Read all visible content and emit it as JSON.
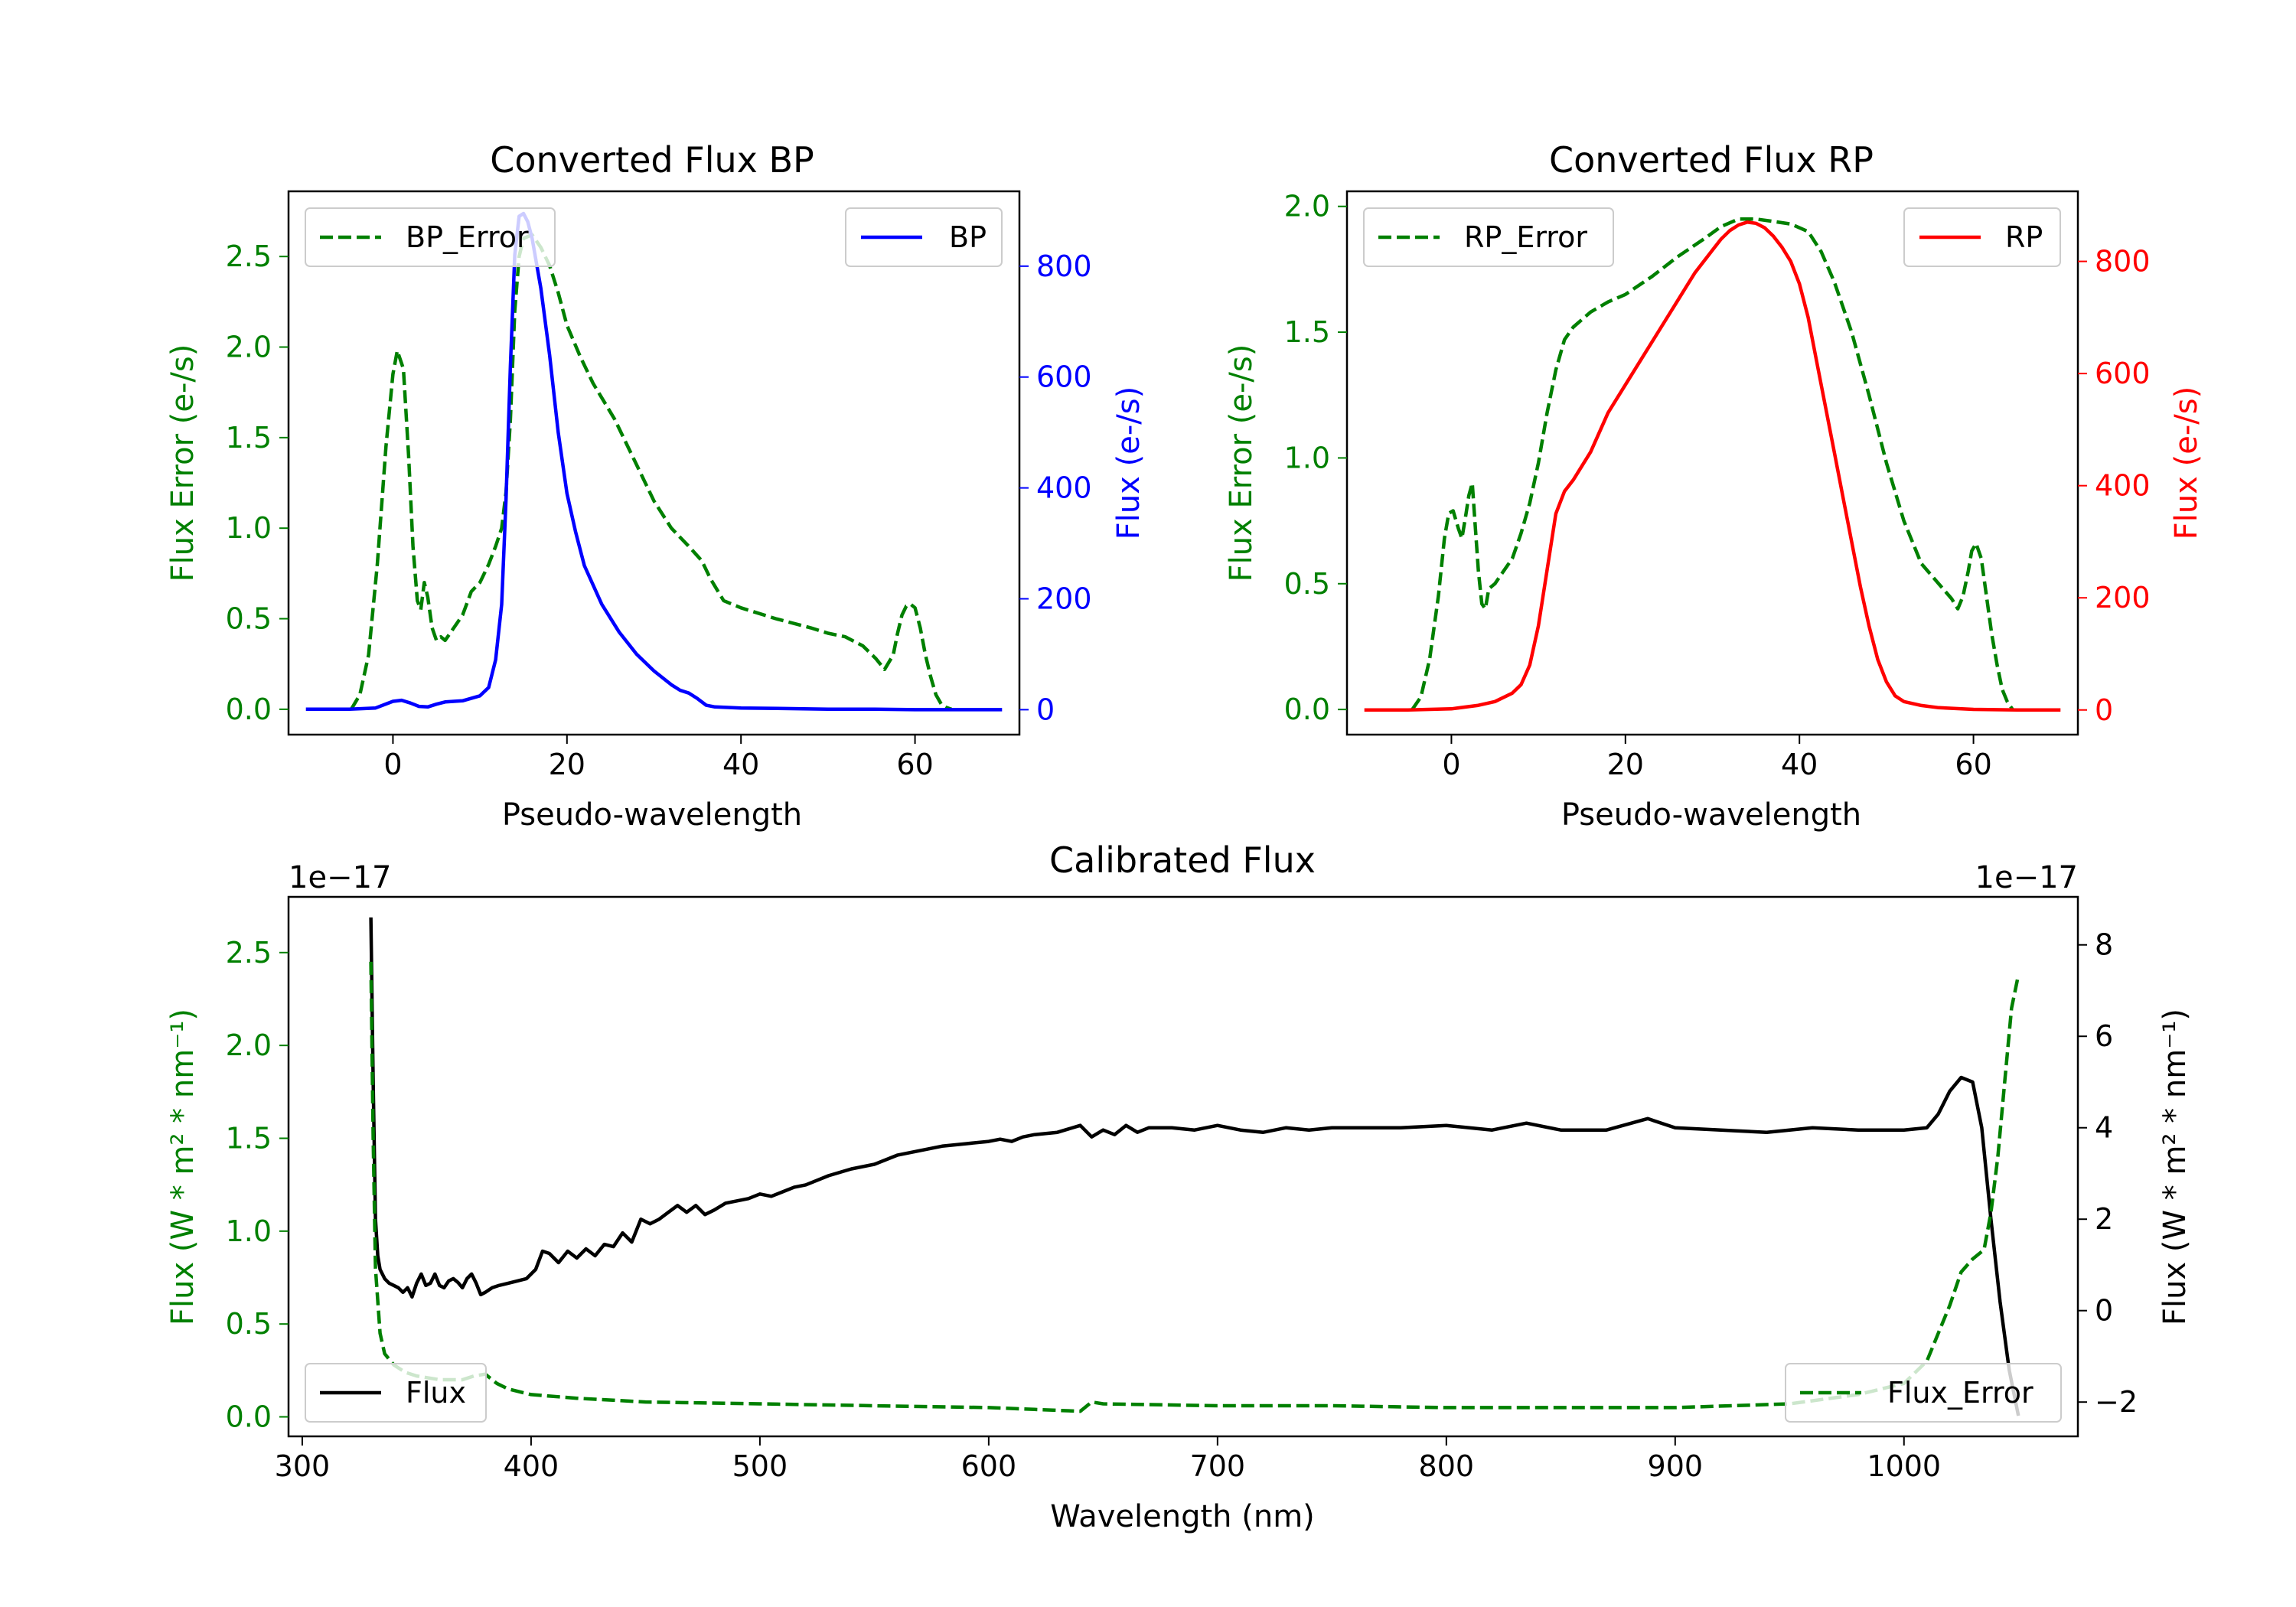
{
  "chart_data": [
    {
      "type": "line",
      "title": "Converted Flux BP",
      "xlabel": "Pseudo-wavelength",
      "xlim": [
        -12,
        72
      ],
      "xticks": [
        0,
        20,
        40,
        60
      ],
      "left_axis": {
        "label": "Flux Error (e-/s)",
        "color": "#008000",
        "ylim": [
          -0.14,
          2.86
        ],
        "ticks": [
          0.0,
          0.5,
          1.0,
          1.5,
          2.0,
          2.5
        ],
        "tick_labels": [
          "0.0",
          "0.5",
          "1.0",
          "1.5",
          "2.0",
          "2.5"
        ]
      },
      "right_axis": {
        "label": "Flux (e-/s)",
        "color": "#0000ff",
        "ylim": [
          -45,
          935
        ],
        "ticks": [
          0,
          200,
          400,
          600,
          800
        ],
        "tick_labels": [
          "0",
          "200",
          "400",
          "600",
          "800"
        ]
      },
      "series": [
        {
          "name": "BP_Error",
          "axis": "left",
          "color": "#008000",
          "style": "dashed",
          "legend": "upper left",
          "x": [
            -4.8,
            -3.8,
            -2.8,
            -1.8,
            -0.8,
            0.0,
            0.5,
            1.2,
            1.8,
            2.3,
            2.8,
            3.2,
            3.6,
            4.0,
            4.5,
            5.0,
            5.5,
            6.0,
            7.0,
            8.0,
            9.0,
            10.0,
            11.0,
            11.8,
            12.5,
            13.0,
            13.5,
            14.0,
            14.5,
            15.0,
            16.0,
            17.0,
            18.0,
            19.0,
            20.0,
            21.5,
            23.0,
            24.5,
            25.5,
            26.5,
            28.0,
            30.0,
            32.0,
            34.0,
            35.5,
            36.5,
            38.0,
            40.0,
            44.0,
            48.0,
            50.0,
            52.0,
            54.0,
            55.5,
            56.5,
            57.5,
            58.0,
            58.5,
            59.0,
            59.5,
            60.0,
            60.6,
            61.2,
            61.8,
            62.4,
            63.0,
            63.6,
            64.2
          ],
          "y": [
            0.0,
            0.08,
            0.3,
            0.8,
            1.45,
            1.85,
            1.98,
            1.88,
            1.4,
            0.9,
            0.6,
            0.55,
            0.7,
            0.62,
            0.45,
            0.38,
            0.4,
            0.38,
            0.45,
            0.52,
            0.65,
            0.7,
            0.8,
            0.9,
            1.0,
            1.2,
            1.6,
            2.2,
            2.5,
            2.6,
            2.62,
            2.55,
            2.45,
            2.3,
            2.12,
            1.95,
            1.8,
            1.68,
            1.6,
            1.5,
            1.35,
            1.15,
            1.0,
            0.9,
            0.82,
            0.72,
            0.6,
            0.56,
            0.5,
            0.45,
            0.42,
            0.4,
            0.35,
            0.28,
            0.22,
            0.3,
            0.42,
            0.52,
            0.57,
            0.58,
            0.56,
            0.45,
            0.3,
            0.18,
            0.08,
            0.03,
            0.01,
            0.0
          ]
        },
        {
          "name": "BP",
          "axis": "right",
          "color": "#0000ff",
          "style": "solid",
          "legend": "upper right",
          "x": [
            -10,
            -5,
            -2,
            0,
            1,
            2,
            3,
            4,
            5,
            6,
            8,
            10,
            11,
            11.8,
            12.5,
            13.0,
            13.5,
            14.0,
            14.5,
            15.0,
            15.5,
            16.0,
            17.0,
            18.0,
            19.0,
            20.0,
            21.0,
            22.0,
            24.0,
            26.0,
            28.0,
            30.0,
            32.0,
            33.0,
            34.0,
            35.0,
            36.0,
            37.0,
            40.0,
            45.0,
            50.0,
            55.0,
            60.0,
            65.0,
            70.0
          ],
          "y": [
            1,
            1,
            3,
            15,
            17,
            12,
            6,
            5,
            10,
            14,
            16,
            25,
            40,
            90,
            190,
            380,
            620,
            820,
            890,
            895,
            880,
            850,
            760,
            640,
            500,
            390,
            320,
            260,
            190,
            140,
            100,
            70,
            45,
            35,
            30,
            20,
            8,
            5,
            3,
            2,
            1,
            1,
            0,
            0,
            0
          ]
        }
      ]
    },
    {
      "type": "line",
      "title": "Converted Flux RP",
      "xlabel": "Pseudo-wavelength",
      "xlim": [
        -12,
        72
      ],
      "xticks": [
        0,
        20,
        40,
        60
      ],
      "left_axis": {
        "label": "Flux Error (e-/s)",
        "color": "#008000",
        "ylim": [
          -0.1,
          2.06
        ],
        "ticks": [
          0.0,
          0.5,
          1.0,
          1.5,
          2.0
        ],
        "tick_labels": [
          "0.0",
          "0.5",
          "1.0",
          "1.5",
          "2.0"
        ]
      },
      "right_axis": {
        "label": "Flux (e-/s)",
        "color": "#ff0000",
        "ylim": [
          -44,
          925
        ],
        "ticks": [
          0,
          200,
          400,
          600,
          800
        ],
        "tick_labels": [
          "0",
          "200",
          "400",
          "600",
          "800"
        ]
      },
      "series": [
        {
          "name": "RP_Error",
          "axis": "left",
          "color": "#008000",
          "style": "dashed",
          "legend": "upper left",
          "x": [
            -4.5,
            -3.5,
            -2.5,
            -1.5,
            -0.8,
            -0.3,
            0.2,
            0.8,
            1.2,
            1.6,
            2.0,
            2.4,
            2.7,
            3.1,
            3.5,
            3.9,
            4.3,
            5.0,
            6.0,
            7.0,
            8.0,
            9.0,
            10.0,
            11.0,
            12.0,
            13.0,
            14.0,
            16.0,
            18.0,
            20.0,
            23.0,
            26.0,
            29.0,
            31.0,
            33.0,
            35.0,
            37.0,
            39.0,
            41.0,
            42.5,
            44.0,
            46.0,
            48.0,
            50.0,
            52.0,
            54.0,
            55.5,
            56.5,
            57.5,
            58.2,
            58.8,
            59.4,
            59.8,
            60.3,
            60.9,
            61.5,
            62.1,
            62.7,
            63.3,
            63.9,
            64.5
          ],
          "y": [
            0.0,
            0.05,
            0.2,
            0.45,
            0.68,
            0.78,
            0.79,
            0.72,
            0.68,
            0.76,
            0.85,
            0.9,
            0.75,
            0.55,
            0.42,
            0.4,
            0.48,
            0.5,
            0.55,
            0.6,
            0.7,
            0.82,
            0.98,
            1.18,
            1.35,
            1.47,
            1.52,
            1.58,
            1.62,
            1.65,
            1.72,
            1.8,
            1.87,
            1.92,
            1.95,
            1.95,
            1.94,
            1.93,
            1.9,
            1.82,
            1.7,
            1.5,
            1.25,
            0.98,
            0.75,
            0.58,
            0.52,
            0.48,
            0.44,
            0.4,
            0.45,
            0.55,
            0.63,
            0.66,
            0.6,
            0.45,
            0.3,
            0.18,
            0.08,
            0.03,
            0.0
          ]
        },
        {
          "name": "RP",
          "axis": "right",
          "color": "#ff0000",
          "style": "solid",
          "legend": "upper right",
          "x": [
            -10,
            -5,
            0,
            3,
            5,
            7,
            8,
            9,
            10,
            11,
            12,
            13,
            14,
            16,
            18,
            20,
            22,
            24,
            26,
            28,
            30,
            31,
            32,
            33,
            34,
            35,
            36,
            37,
            38,
            39,
            40,
            41,
            42,
            43,
            44,
            45,
            46,
            47,
            48,
            49,
            50,
            51,
            52,
            54,
            56,
            60,
            65,
            70
          ],
          "y": [
            0,
            0,
            2,
            8,
            15,
            30,
            45,
            80,
            150,
            250,
            350,
            390,
            410,
            460,
            530,
            580,
            630,
            680,
            730,
            780,
            820,
            840,
            855,
            865,
            870,
            868,
            860,
            845,
            825,
            800,
            760,
            700,
            620,
            540,
            460,
            380,
            300,
            220,
            150,
            90,
            50,
            25,
            15,
            8,
            4,
            1,
            0,
            0
          ]
        }
      ]
    },
    {
      "type": "line",
      "title": "Calibrated Flux",
      "xlabel": "Wavelength (nm)",
      "xlim": [
        294,
        1076
      ],
      "xticks": [
        300,
        400,
        500,
        600,
        700,
        800,
        900,
        1000
      ],
      "left_axis": {
        "label": "Flux (W * m² * nm⁻¹)",
        "color": "#008000",
        "offset_text": "1e−17",
        "ylim": [
          -0.105,
          2.8
        ],
        "ticks": [
          0.0,
          0.5,
          1.0,
          1.5,
          2.0,
          2.5
        ],
        "tick_labels": [
          "0.0",
          "0.5",
          "1.0",
          "1.5",
          "2.0",
          "2.5"
        ]
      },
      "right_axis": {
        "label": "Flux (W * m² * nm⁻¹)",
        "color": "#000000",
        "offset_text": "1e−17",
        "ylim": [
          -2.75,
          9.05
        ],
        "ticks": [
          -2,
          0,
          2,
          4,
          6,
          8
        ],
        "tick_labels": [
          "−2",
          "0",
          "2",
          "4",
          "6",
          "8"
        ]
      },
      "series": [
        {
          "name": "Flux",
          "axis": "right",
          "color": "#000000",
          "style": "solid",
          "legend": "lower left",
          "x": [
            330,
            331,
            332,
            333,
            334,
            336,
            338,
            340,
            342,
            344,
            346,
            348,
            350,
            352,
            354,
            356,
            358,
            360,
            362,
            364,
            366,
            368,
            370,
            372,
            374,
            376,
            378,
            380,
            383,
            386,
            390,
            394,
            398,
            402,
            405,
            408,
            412,
            416,
            420,
            424,
            428,
            432,
            436,
            440,
            444,
            448,
            452,
            456,
            460,
            464,
            468,
            472,
            476,
            480,
            485,
            490,
            495,
            500,
            505,
            510,
            515,
            520,
            525,
            530,
            540,
            550,
            560,
            570,
            580,
            590,
            600,
            605,
            610,
            615,
            620,
            630,
            640,
            645,
            650,
            655,
            660,
            665,
            670,
            680,
            690,
            700,
            710,
            720,
            730,
            740,
            750,
            760,
            780,
            800,
            820,
            835,
            850,
            870,
            888,
            900,
            920,
            940,
            960,
            980,
            1000,
            1010,
            1015,
            1020,
            1025,
            1030,
            1034,
            1038,
            1042,
            1046,
            1050
          ],
          "y": [
            8.6,
            5.0,
            2.0,
            1.2,
            0.9,
            0.7,
            0.6,
            0.55,
            0.5,
            0.4,
            0.5,
            0.3,
            0.6,
            0.8,
            0.55,
            0.6,
            0.8,
            0.55,
            0.5,
            0.65,
            0.7,
            0.62,
            0.5,
            0.7,
            0.8,
            0.6,
            0.35,
            0.4,
            0.5,
            0.55,
            0.6,
            0.65,
            0.7,
            0.9,
            1.3,
            1.25,
            1.05,
            1.3,
            1.15,
            1.35,
            1.2,
            1.45,
            1.4,
            1.7,
            1.5,
            2.0,
            1.9,
            2.0,
            2.15,
            2.3,
            2.15,
            2.3,
            2.1,
            2.2,
            2.35,
            2.4,
            2.45,
            2.55,
            2.5,
            2.6,
            2.7,
            2.75,
            2.85,
            2.95,
            3.1,
            3.2,
            3.4,
            3.5,
            3.6,
            3.65,
            3.7,
            3.75,
            3.7,
            3.8,
            3.85,
            3.9,
            4.05,
            3.8,
            3.95,
            3.85,
            4.05,
            3.9,
            4.0,
            4.0,
            3.95,
            4.05,
            3.95,
            3.9,
            4.0,
            3.95,
            4.0,
            4.0,
            4.0,
            4.05,
            3.95,
            4.1,
            3.95,
            3.95,
            4.2,
            4.0,
            3.95,
            3.9,
            4.0,
            3.95,
            3.95,
            4.0,
            4.3,
            4.8,
            5.1,
            5.0,
            4.0,
            2.0,
            0.2,
            -1.3,
            -2.3
          ]
        },
        {
          "name": "Flux_Error",
          "axis": "left",
          "color": "#008000",
          "style": "dashed",
          "legend": "lower right",
          "x": [
            330,
            331,
            332,
            334,
            336,
            340,
            345,
            350,
            360,
            370,
            375,
            380,
            385,
            390,
            400,
            420,
            450,
            500,
            550,
            600,
            620,
            640,
            645,
            650,
            700,
            750,
            800,
            850,
            900,
            950,
            980,
            1000,
            1010,
            1015,
            1020,
            1025,
            1030,
            1035,
            1038,
            1041,
            1044,
            1047,
            1050
          ],
          "y": [
            2.45,
            1.5,
            0.8,
            0.45,
            0.34,
            0.28,
            0.24,
            0.22,
            0.2,
            0.2,
            0.22,
            0.23,
            0.18,
            0.15,
            0.12,
            0.1,
            0.08,
            0.07,
            0.06,
            0.05,
            0.04,
            0.03,
            0.08,
            0.07,
            0.06,
            0.06,
            0.05,
            0.05,
            0.05,
            0.07,
            0.12,
            0.18,
            0.3,
            0.45,
            0.6,
            0.78,
            0.85,
            0.9,
            1.1,
            1.4,
            1.8,
            2.2,
            2.38
          ]
        }
      ]
    }
  ]
}
